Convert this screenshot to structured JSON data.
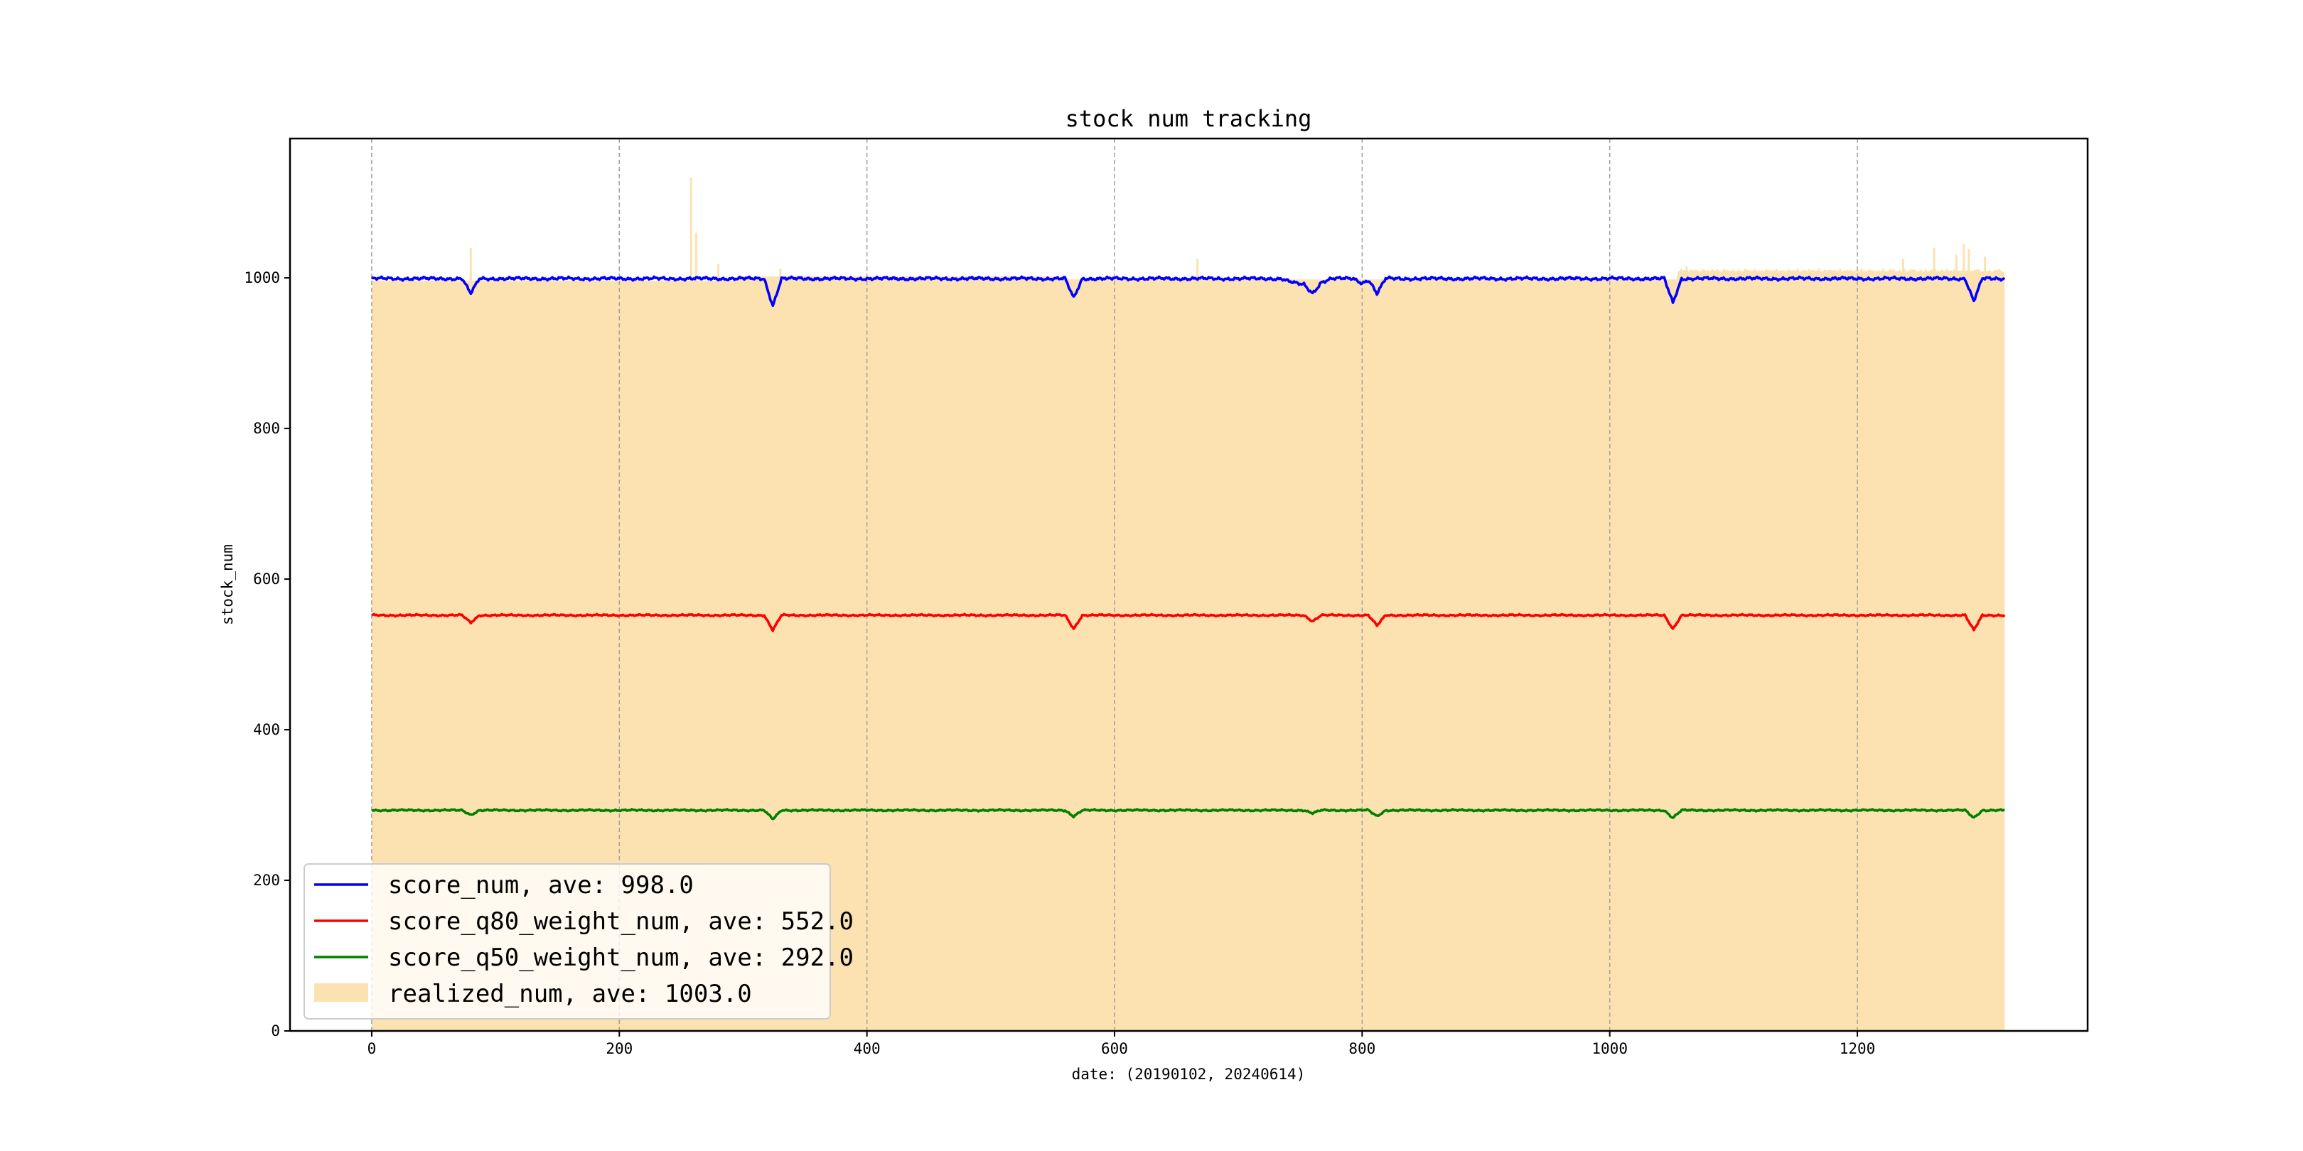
{
  "chart_data": {
    "type": "line",
    "title": "stock num tracking",
    "xlabel": "date: (20190102, 20240614)",
    "ylabel": "stock_num",
    "xlim": [
      -66,
      1386
    ],
    "ylim": [
      0,
      1185
    ],
    "x_ticks": [
      0,
      200,
      400,
      600,
      800,
      1000,
      1200
    ],
    "y_ticks": [
      0,
      200,
      400,
      600,
      800,
      1000
    ],
    "grid": "vertical dashed",
    "legend_position": "lower-left",
    "n_points": 1320,
    "colors": {
      "score_num": "#0000ff",
      "score_q80_weight_num": "#ff0000",
      "score_q50_weight_num": "#008000",
      "realized_num": "#fde2b1"
    },
    "series": [
      {
        "name": "score_num",
        "legend": "score_num, ave: 998.0",
        "kind": "line",
        "base": 999,
        "dips": [
          [
            80,
            20
          ],
          [
            324,
            36
          ],
          [
            567,
            26
          ],
          [
            760,
            12
          ],
          [
            800,
            6
          ],
          [
            812,
            20
          ],
          [
            1051,
            32
          ],
          [
            1294,
            30
          ]
        ]
      },
      {
        "name": "score_q80_weight_num",
        "legend": "score_q80_weight_num, ave: 552.0",
        "kind": "line",
        "base": 552,
        "dips": [
          [
            80,
            10
          ],
          [
            324,
            20
          ],
          [
            567,
            18
          ],
          [
            760,
            8
          ],
          [
            812,
            14
          ],
          [
            1051,
            18
          ],
          [
            1294,
            20
          ]
        ]
      },
      {
        "name": "score_q50_weight_num",
        "legend": "score_q50_weight_num, ave: 292.0",
        "kind": "line",
        "base": 293,
        "dips": [
          [
            80,
            6
          ],
          [
            324,
            12
          ],
          [
            567,
            8
          ],
          [
            760,
            4
          ],
          [
            812,
            8
          ],
          [
            1051,
            10
          ],
          [
            1294,
            10
          ]
        ]
      },
      {
        "name": "realized_num",
        "legend": "realized_num, ave: 1003.0",
        "kind": "area",
        "base": 996,
        "segments": [
          [
            0,
            295,
            996
          ],
          [
            295,
            560,
            1002
          ],
          [
            560,
            1055,
            998
          ],
          [
            1055,
            1320,
            1008
          ]
        ],
        "spikes": [
          [
            80,
            1040
          ],
          [
            258,
            1133
          ],
          [
            262,
            1060
          ],
          [
            280,
            1018
          ],
          [
            330,
            1012
          ],
          [
            667,
            1025
          ],
          [
            1062,
            1015
          ],
          [
            1237,
            1025
          ],
          [
            1262,
            1040
          ],
          [
            1280,
            1030
          ],
          [
            1286,
            1045
          ],
          [
            1290,
            1038
          ],
          [
            1303,
            1028
          ]
        ]
      }
    ]
  }
}
